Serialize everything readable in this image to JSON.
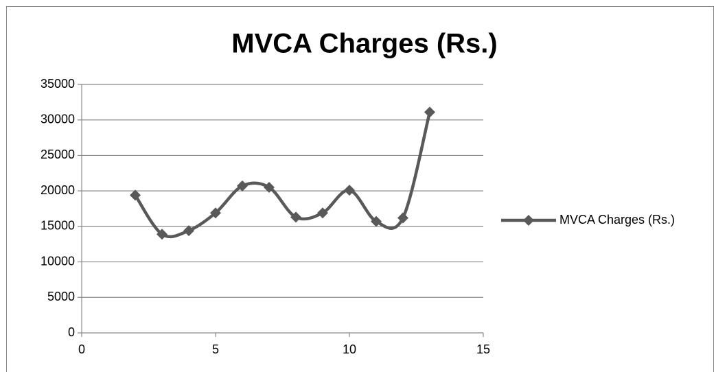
{
  "chart_data": {
    "type": "line",
    "smooth": true,
    "title": "MVCA Charges (Rs.)",
    "x": [
      2,
      3,
      4,
      5,
      6,
      7,
      8,
      9,
      10,
      11,
      12,
      13
    ],
    "series": [
      {
        "name": "MVCA Charges (Rs.)",
        "color": "#595959",
        "values": [
          19400,
          13900,
          14400,
          16900,
          20700,
          20500,
          16300,
          16900,
          20100,
          15700,
          16200,
          31100
        ]
      }
    ],
    "xlim": [
      0,
      15
    ],
    "xticks": [
      0,
      5,
      10,
      15
    ],
    "ylim": [
      0,
      35000
    ],
    "yticks": [
      0,
      5000,
      10000,
      15000,
      20000,
      25000,
      30000,
      35000
    ],
    "grid": true,
    "legend": "right"
  }
}
